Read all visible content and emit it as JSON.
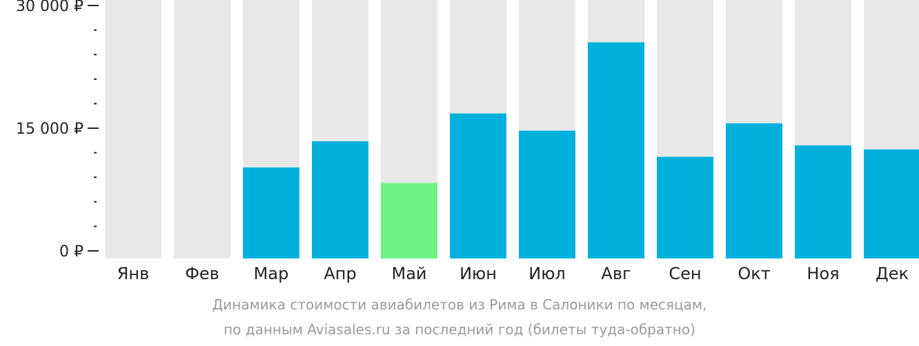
{
  "chart_data": {
    "type": "bar",
    "categories": [
      "Янв",
      "Фев",
      "Мар",
      "Апр",
      "Май",
      "Июн",
      "Июл",
      "Авг",
      "Сен",
      "Окт",
      "Ноя",
      "Дек"
    ],
    "values": [
      0,
      0,
      10200,
      13400,
      8300,
      16800,
      14700,
      25500,
      11500,
      15600,
      12900,
      12400
    ],
    "ylim": [
      0,
      30000
    ],
    "yticks": [
      {
        "value": 0,
        "label": "0 ₽"
      },
      {
        "value": 15000,
        "label": "15 000 ₽"
      },
      {
        "value": 30000,
        "label": "30 000 ₽"
      }
    ],
    "minor_tick_step": 3000,
    "highlight_category": "Май",
    "colors": {
      "bar": "#00b0dc",
      "highlight": "#6df185",
      "background_column": "#e8e8e8",
      "axis": "#222222"
    },
    "caption_lines": [
      "Динамика стоимости авиабилетов из Рима в Салоники по месяцам,",
      "по данным Aviasales.ru за последний год (билеты туда-обратно)"
    ]
  }
}
